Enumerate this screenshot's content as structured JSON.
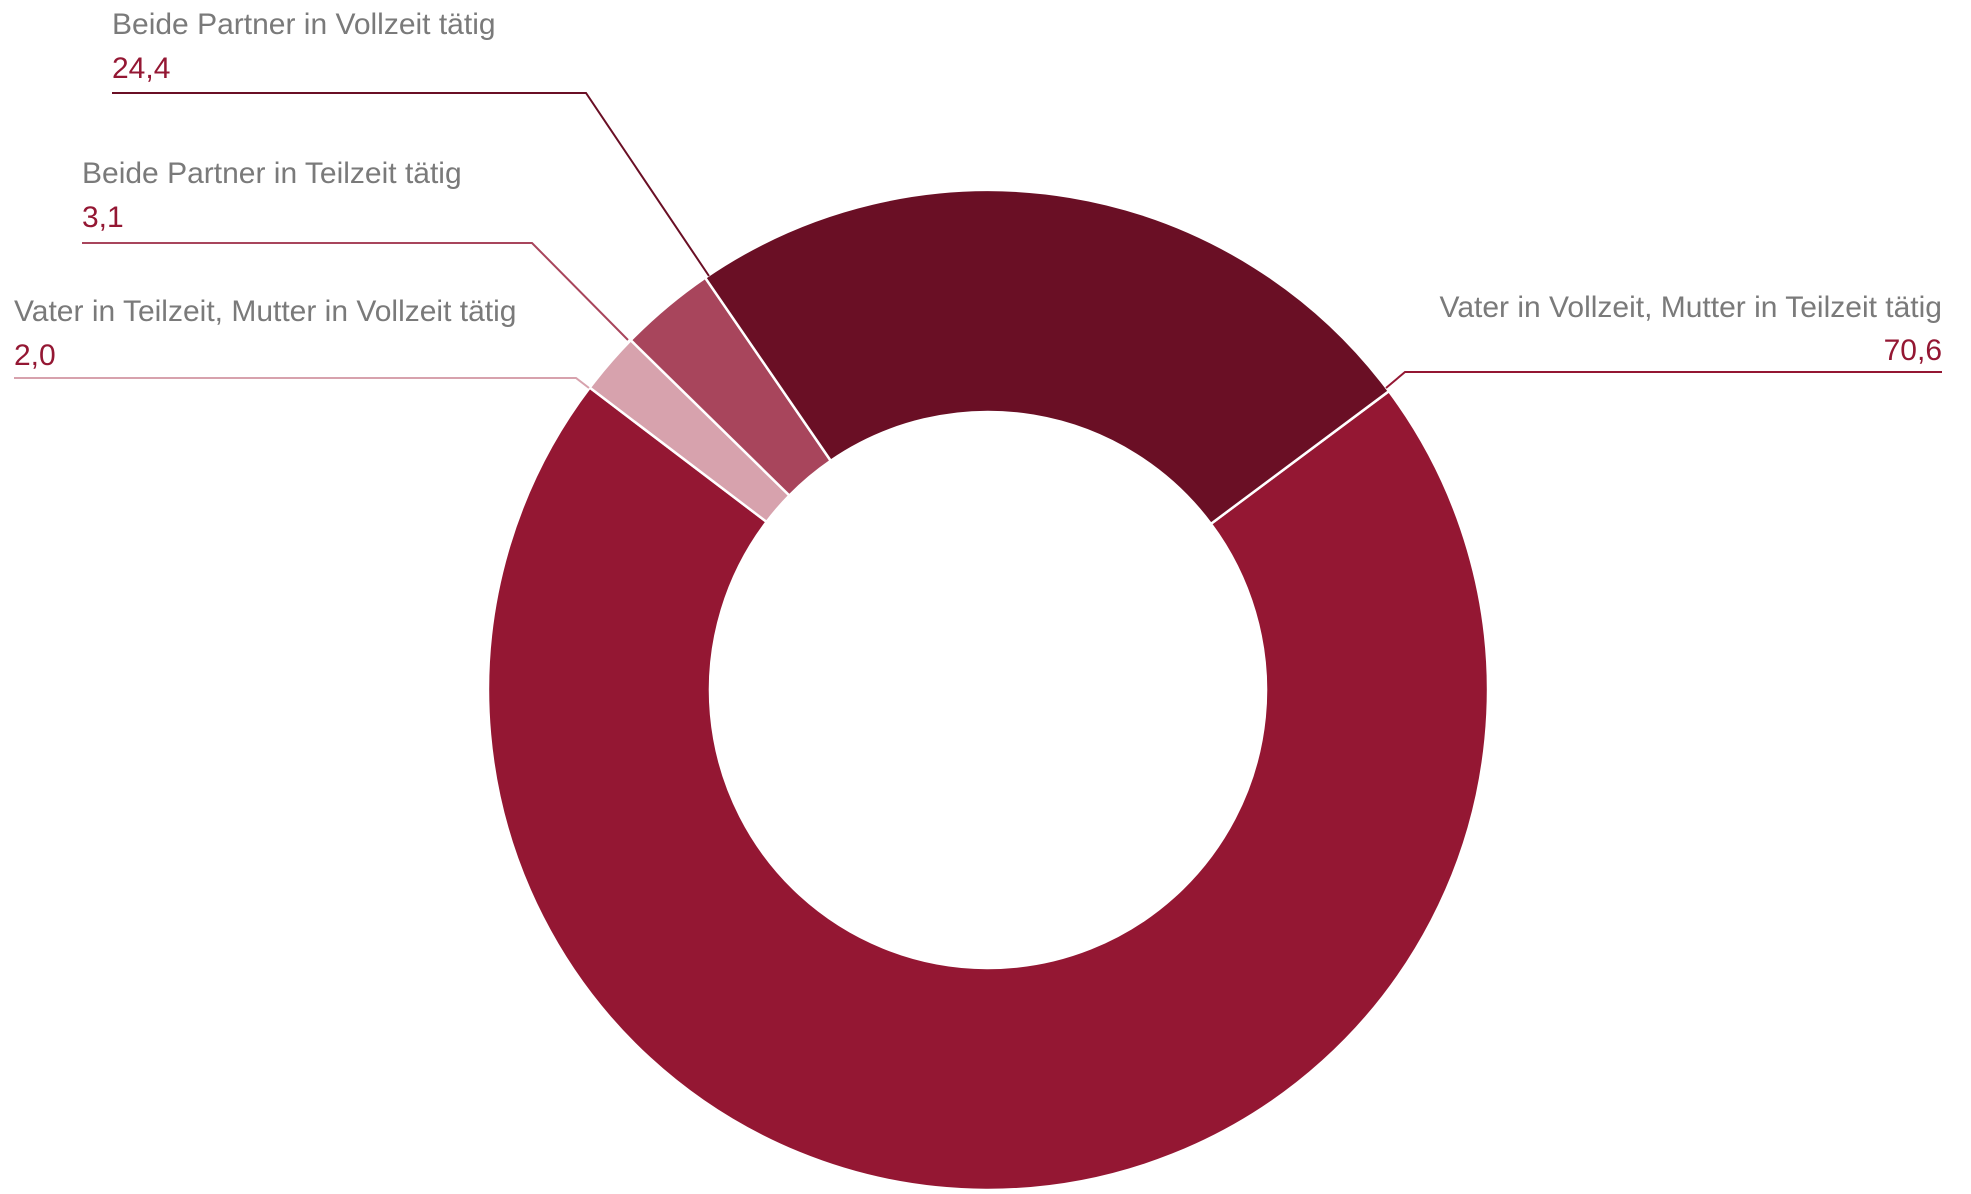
{
  "chart_data": {
    "type": "pie",
    "donut": true,
    "title": "",
    "legend": "none",
    "slices": [
      {
        "label": "Vater in Vollzeit, Mutter in Teilzeit tätig",
        "value": 70.6,
        "value_label": "70,6",
        "color": "#941733",
        "value_color": "#941733"
      },
      {
        "label": "Vater in Teilzeit, Mutter in Vollzeit tätig",
        "value": 2.0,
        "value_label": "2,0",
        "color": "#d7a2ad",
        "value_color": "#941733"
      },
      {
        "label": "Beide Partner in Teilzeit tätig",
        "value": 3.1,
        "value_label": "3,1",
        "color": "#a8455c",
        "value_color": "#941733"
      },
      {
        "label": "Beide Partner in Vollzeit tätig",
        "value": 24.4,
        "value_label": "24,4",
        "color": "#6a0f25",
        "value_color": "#941733"
      }
    ]
  }
}
